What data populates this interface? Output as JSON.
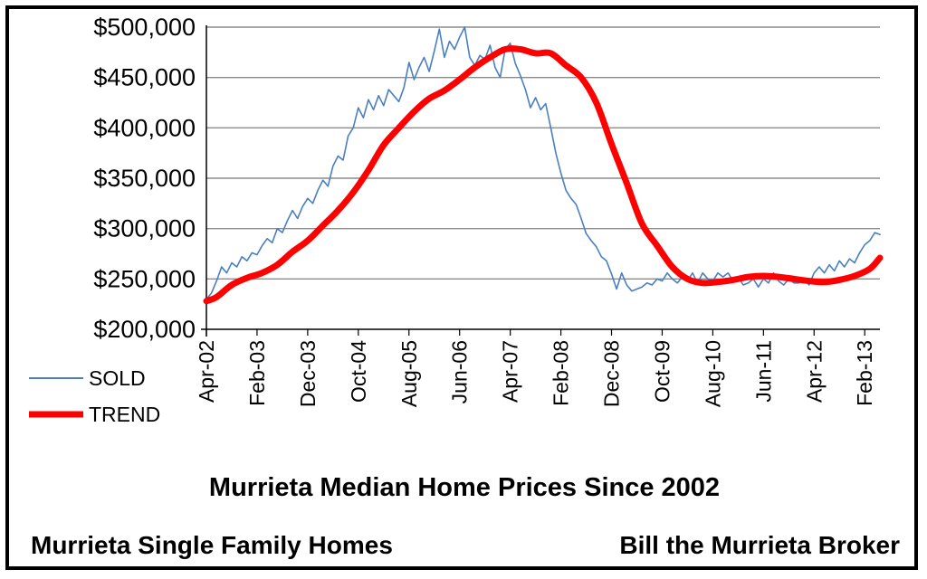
{
  "chart_data": {
    "type": "line",
    "title": "Murrieta Median Home Prices Since 2002",
    "footer_left": "Murrieta Single Family Homes",
    "footer_right": "Bill the Murrieta Broker",
    "xlabel": "",
    "ylabel": "",
    "ylim": [
      200000,
      500000
    ],
    "y_ticks": [
      {
        "value": 200000,
        "label": "$200,000"
      },
      {
        "value": 250000,
        "label": "$250,000"
      },
      {
        "value": 300000,
        "label": "$300,000"
      },
      {
        "value": 350000,
        "label": "$350,000"
      },
      {
        "value": 400000,
        "label": "$400,000"
      },
      {
        "value": 450000,
        "label": "$450,000"
      },
      {
        "value": 500000,
        "label": "$500,000"
      }
    ],
    "x_range": [
      "2002-04",
      "2013-05"
    ],
    "x_ticks": [
      "Apr-02",
      "Feb-03",
      "Dec-03",
      "Oct-04",
      "Aug-05",
      "Jun-06",
      "Apr-07",
      "Feb-08",
      "Dec-08",
      "Oct-09",
      "Aug-10",
      "Jun-11",
      "Apr-12",
      "Feb-13"
    ],
    "grid": true,
    "legend_position": "bottom-left",
    "series": [
      {
        "name": "SOLD",
        "color": "#4a7fc1",
        "style": "thin",
        "points": [
          [
            "2002-04",
            230000
          ],
          [
            "2002-05",
            236000
          ],
          [
            "2002-06",
            248000
          ],
          [
            "2002-07",
            262000
          ],
          [
            "2002-08",
            256000
          ],
          [
            "2002-09",
            266000
          ],
          [
            "2002-10",
            262000
          ],
          [
            "2002-11",
            272000
          ],
          [
            "2002-12",
            268000
          ],
          [
            "2003-01",
            276000
          ],
          [
            "2003-02",
            274000
          ],
          [
            "2003-03",
            283000
          ],
          [
            "2003-04",
            290000
          ],
          [
            "2003-05",
            286000
          ],
          [
            "2003-06",
            300000
          ],
          [
            "2003-07",
            296000
          ],
          [
            "2003-08",
            308000
          ],
          [
            "2003-09",
            318000
          ],
          [
            "2003-10",
            310000
          ],
          [
            "2003-11",
            322000
          ],
          [
            "2003-12",
            330000
          ],
          [
            "2004-01",
            325000
          ],
          [
            "2004-02",
            338000
          ],
          [
            "2004-03",
            348000
          ],
          [
            "2004-04",
            342000
          ],
          [
            "2004-05",
            362000
          ],
          [
            "2004-06",
            372000
          ],
          [
            "2004-07",
            368000
          ],
          [
            "2004-08",
            392000
          ],
          [
            "2004-09",
            400000
          ],
          [
            "2004-10",
            420000
          ],
          [
            "2004-11",
            410000
          ],
          [
            "2004-12",
            428000
          ],
          [
            "2005-01",
            418000
          ],
          [
            "2005-02",
            432000
          ],
          [
            "2005-03",
            422000
          ],
          [
            "2005-04",
            438000
          ],
          [
            "2005-05",
            432000
          ],
          [
            "2005-06",
            426000
          ],
          [
            "2005-07",
            440000
          ],
          [
            "2005-08",
            465000
          ],
          [
            "2005-09",
            448000
          ],
          [
            "2005-10",
            460000
          ],
          [
            "2005-11",
            470000
          ],
          [
            "2005-12",
            456000
          ],
          [
            "2006-01",
            476000
          ],
          [
            "2006-02",
            498000
          ],
          [
            "2006-03",
            470000
          ],
          [
            "2006-04",
            486000
          ],
          [
            "2006-05",
            478000
          ],
          [
            "2006-06",
            490000
          ],
          [
            "2006-07",
            500000
          ],
          [
            "2006-08",
            470000
          ],
          [
            "2006-09",
            462000
          ],
          [
            "2006-10",
            472000
          ],
          [
            "2006-11",
            468000
          ],
          [
            "2006-12",
            482000
          ],
          [
            "2007-01",
            460000
          ],
          [
            "2007-02",
            450000
          ],
          [
            "2007-03",
            478000
          ],
          [
            "2007-04",
            484000
          ],
          [
            "2007-05",
            464000
          ],
          [
            "2007-06",
            452000
          ],
          [
            "2007-07",
            438000
          ],
          [
            "2007-08",
            420000
          ],
          [
            "2007-09",
            430000
          ],
          [
            "2007-10",
            418000
          ],
          [
            "2007-11",
            424000
          ],
          [
            "2007-12",
            400000
          ],
          [
            "2008-01",
            375000
          ],
          [
            "2008-02",
            355000
          ],
          [
            "2008-03",
            338000
          ],
          [
            "2008-04",
            330000
          ],
          [
            "2008-05",
            324000
          ],
          [
            "2008-06",
            310000
          ],
          [
            "2008-07",
            295000
          ],
          [
            "2008-08",
            288000
          ],
          [
            "2008-09",
            282000
          ],
          [
            "2008-10",
            272000
          ],
          [
            "2008-11",
            268000
          ],
          [
            "2008-12",
            255000
          ],
          [
            "2009-01",
            240000
          ],
          [
            "2009-02",
            256000
          ],
          [
            "2009-03",
            244000
          ],
          [
            "2009-04",
            238000
          ],
          [
            "2009-05",
            240000
          ],
          [
            "2009-06",
            242000
          ],
          [
            "2009-07",
            246000
          ],
          [
            "2009-08",
            244000
          ],
          [
            "2009-09",
            250000
          ],
          [
            "2009-10",
            248000
          ],
          [
            "2009-11",
            256000
          ],
          [
            "2009-12",
            250000
          ],
          [
            "2010-01",
            246000
          ],
          [
            "2010-02",
            252000
          ],
          [
            "2010-03",
            248000
          ],
          [
            "2010-04",
            256000
          ],
          [
            "2010-05",
            246000
          ],
          [
            "2010-06",
            256000
          ],
          [
            "2010-07",
            250000
          ],
          [
            "2010-08",
            248000
          ],
          [
            "2010-09",
            256000
          ],
          [
            "2010-10",
            252000
          ],
          [
            "2010-11",
            256000
          ],
          [
            "2010-12",
            248000
          ],
          [
            "2011-01",
            252000
          ],
          [
            "2011-02",
            244000
          ],
          [
            "2011-03",
            246000
          ],
          [
            "2011-04",
            250000
          ],
          [
            "2011-05",
            242000
          ],
          [
            "2011-06",
            250000
          ],
          [
            "2011-07",
            246000
          ],
          [
            "2011-08",
            256000
          ],
          [
            "2011-09",
            248000
          ],
          [
            "2011-10",
            244000
          ],
          [
            "2011-11",
            250000
          ],
          [
            "2011-12",
            246000
          ],
          [
            "2012-01",
            246000
          ],
          [
            "2012-02",
            250000
          ],
          [
            "2012-03",
            244000
          ],
          [
            "2012-04",
            256000
          ],
          [
            "2012-05",
            262000
          ],
          [
            "2012-06",
            256000
          ],
          [
            "2012-07",
            264000
          ],
          [
            "2012-08",
            258000
          ],
          [
            "2012-09",
            268000
          ],
          [
            "2012-10",
            262000
          ],
          [
            "2012-11",
            270000
          ],
          [
            "2012-12",
            266000
          ],
          [
            "2013-01",
            276000
          ],
          [
            "2013-02",
            284000
          ],
          [
            "2013-03",
            288000
          ],
          [
            "2013-04",
            296000
          ],
          [
            "2013-05",
            294000
          ]
        ]
      },
      {
        "name": "TREND",
        "color": "#ff0000",
        "style": "thick",
        "points": [
          [
            "2002-04",
            228000
          ],
          [
            "2002-06",
            232000
          ],
          [
            "2002-09",
            244000
          ],
          [
            "2002-12",
            251000
          ],
          [
            "2003-03",
            256000
          ],
          [
            "2003-06",
            264000
          ],
          [
            "2003-09",
            277000
          ],
          [
            "2003-12",
            288000
          ],
          [
            "2004-03",
            303000
          ],
          [
            "2004-06",
            318000
          ],
          [
            "2004-09",
            336000
          ],
          [
            "2004-12",
            358000
          ],
          [
            "2005-03",
            383000
          ],
          [
            "2005-06",
            400000
          ],
          [
            "2005-09",
            416000
          ],
          [
            "2005-12",
            429000
          ],
          [
            "2006-03",
            437000
          ],
          [
            "2006-06",
            448000
          ],
          [
            "2006-09",
            460000
          ],
          [
            "2006-12",
            470000
          ],
          [
            "2007-03",
            478000
          ],
          [
            "2007-06",
            478000
          ],
          [
            "2007-09",
            474000
          ],
          [
            "2007-12",
            474000
          ],
          [
            "2008-03",
            462000
          ],
          [
            "2008-06",
            450000
          ],
          [
            "2008-09",
            425000
          ],
          [
            "2008-12",
            384000
          ],
          [
            "2009-03",
            345000
          ],
          [
            "2009-06",
            305000
          ],
          [
            "2009-09",
            283000
          ],
          [
            "2009-12",
            262000
          ],
          [
            "2010-03",
            250000
          ],
          [
            "2010-06",
            246000
          ],
          [
            "2010-09",
            247000
          ],
          [
            "2010-12",
            249000
          ],
          [
            "2011-03",
            252000
          ],
          [
            "2011-06",
            253000
          ],
          [
            "2011-09",
            252000
          ],
          [
            "2011-12",
            250000
          ],
          [
            "2012-03",
            248000
          ],
          [
            "2012-06",
            247000
          ],
          [
            "2012-09",
            249000
          ],
          [
            "2012-12",
            253000
          ],
          [
            "2013-03",
            260000
          ],
          [
            "2013-05",
            271000
          ]
        ]
      }
    ]
  }
}
